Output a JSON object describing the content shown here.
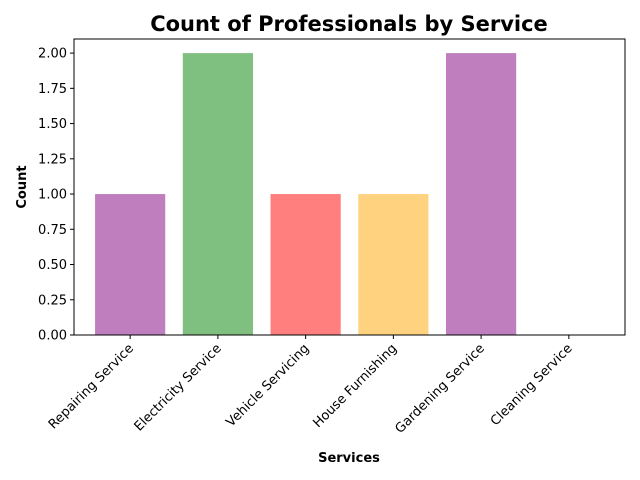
{
  "chart_data": {
    "type": "bar",
    "title": "Count of Professionals by Service",
    "xlabel": "Services",
    "ylabel": "Count",
    "categories": [
      "Repairing Service",
      "Electricity Service",
      "Vehicle Servicing",
      "House Furnishing",
      "Gardening Service",
      "Cleaning Service"
    ],
    "values": [
      1,
      2,
      1,
      1,
      2,
      0
    ],
    "colors": [
      "#bf7fbf",
      "#7fbf7f",
      "#ff7f7f",
      "#ffd27f",
      "#bf7fbf",
      "#7fbf7f"
    ],
    "ylim": [
      0,
      2.1
    ],
    "yticks": [
      "0.00",
      "0.25",
      "0.50",
      "0.75",
      "1.00",
      "1.25",
      "1.50",
      "1.75",
      "2.00"
    ],
    "grid": false,
    "legend": "none"
  }
}
